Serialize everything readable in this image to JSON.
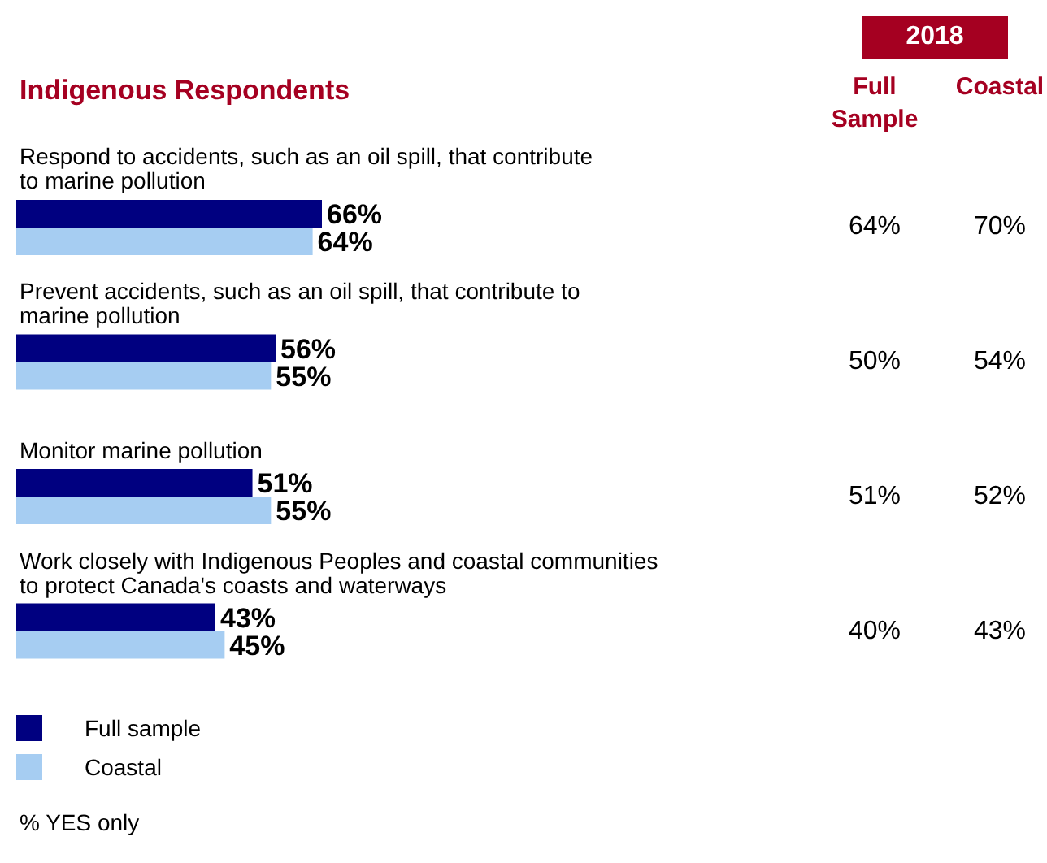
{
  "chart_data": {
    "type": "bar",
    "orientation": "horizontal",
    "title": "Indigenous Respondents",
    "categories": [
      "Respond to accidents, such as an oil spill, that contribute to marine pollution",
      "Prevent accidents, such as an oil spill, that contribute to marine pollution",
      "Monitor marine pollution",
      "Work closely with Indigenous Peoples and coastal communities to protect Canada's coasts and waterways"
    ],
    "series": [
      {
        "name": "Full sample",
        "color": "#000080",
        "values": [
          66,
          56,
          51,
          43
        ],
        "value_labels": [
          "66%",
          "56%",
          "51%",
          "43%"
        ]
      },
      {
        "name": "Coastal",
        "color": "#a6cdf2",
        "values": [
          64,
          55,
          55,
          45
        ],
        "value_labels": [
          "64%",
          "55%",
          "55%",
          "45%"
        ]
      }
    ],
    "tick_labels": false,
    "data_labels": true,
    "legend": "bottom left",
    "annotations": [
      "2018",
      "Full Sample",
      "Coastal",
      "64%",
      "70%",
      "50%",
      "54%",
      "51%",
      "52%",
      "40%",
      "43%",
      "% YES only"
    ]
  }
}
